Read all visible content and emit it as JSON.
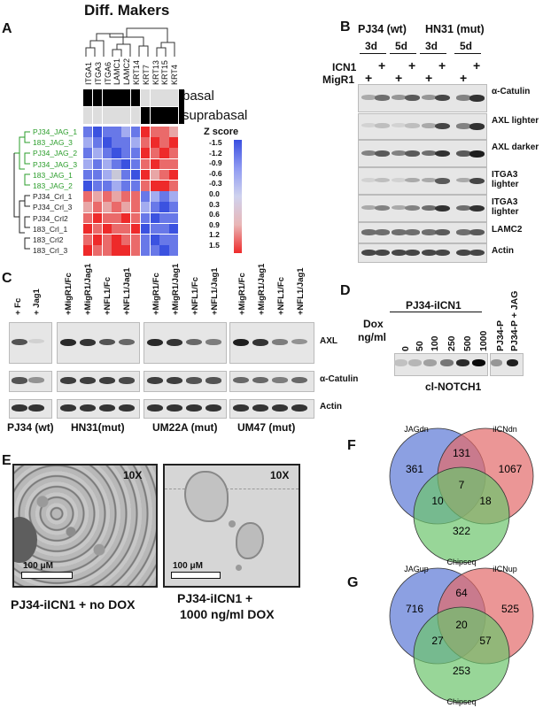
{
  "panelA": {
    "label": "A",
    "title": "Diff. Makers",
    "genes": [
      "ITGA1",
      "ITGA3",
      "ITGA6",
      "LAMC1",
      "LAMC2",
      "KRT14",
      "KRT7",
      "KRT13",
      "KRT15",
      "KRT4"
    ],
    "basal_label": "basal",
    "suprabasal_label": "suprabasal",
    "zscore_title": "Z score",
    "zscore_ticks": [
      "-1.5",
      "-1.2",
      "-0.9",
      "-0.6",
      "-0.3",
      "0.0",
      "0.3",
      "0.6",
      "0.9",
      "1.2",
      "1.5"
    ],
    "rows": [
      "PJ34_JAG_1",
      "183_JAG_3",
      "PJ34_JAG_2",
      "PJ34_JAG_3",
      "183_JAG_1",
      "183_JAG_2",
      "PJ34_Crl_1",
      "PJ34_Crl_3",
      "PJ34_Crl2",
      "183_Crl_1",
      "183_Crl2",
      "183_Crl_3"
    ],
    "row_colors": {
      "jag": "#2a9d2a",
      "crl": "#222222"
    }
  },
  "panelB": {
    "label": "B",
    "group1": "PJ34 (wt)",
    "group2": "HN31 (mut)",
    "times": [
      "3d",
      "5d",
      "3d",
      "5d"
    ],
    "icn1_label": "ICN1",
    "migr1_label": "MigR1",
    "plus": "+",
    "blots": [
      "α-Catulin",
      "AXL lighter",
      "AXL darker",
      "ITGA3 lighter",
      "ITGA3 lighter",
      "LAMC2",
      "Actin"
    ]
  },
  "panelC": {
    "label": "C",
    "lanes_pj34": [
      "+ Fc",
      "+ Jag1"
    ],
    "lanes_other": [
      "+MigR1/Fc",
      "+MigR1/Jag1",
      "+NFL1/Fc",
      "+NFL1/Jag1"
    ],
    "blots": [
      "AXL",
      "α-Catulin",
      "Actin"
    ],
    "cells": [
      "PJ34 (wt)",
      "HN31(mut)",
      "UM22A (mut)",
      "UM47 (mut)"
    ]
  },
  "panelD": {
    "label": "D",
    "header": "PJ34-iICN1",
    "dox_label": "Dox",
    "unit_label": "ng/ml",
    "doses": [
      "0",
      "50",
      "100",
      "250",
      "500",
      "1000"
    ],
    "extra_lanes": [
      "PJ34-P",
      "PJ34-P + JAG"
    ],
    "blot_label": "cl-NOTCH1"
  },
  "panelE": {
    "label": "E",
    "mag_left": "10X",
    "mag_right": "10X",
    "scale_left": "100 μM",
    "scale_right": "100 μM",
    "caption_left": "PJ34-iICN1 + no DOX",
    "caption_right_1": "PJ34-iICN1 +",
    "caption_right_2": "1000 ng/ml DOX"
  },
  "panelF": {
    "label": "F",
    "set_a": "JAGdn",
    "set_b": "iICNdn",
    "set_c": "Chipseq",
    "a_only": "361",
    "ab": "131",
    "b_only": "1067",
    "abc": "7",
    "ac": "10",
    "bc": "18",
    "c_only": "322",
    "colors": {
      "a": "#5b78d6",
      "b": "#e26a6a",
      "c": "#6cc56c"
    }
  },
  "panelG": {
    "label": "G",
    "set_a": "JAGup",
    "set_b": "iICNup",
    "set_c": "Chipseq",
    "a_only": "716",
    "ab": "64",
    "b_only": "525",
    "abc": "20",
    "ac": "27",
    "bc": "57",
    "c_only": "253",
    "colors": {
      "a": "#5b78d6",
      "b": "#e26a6a",
      "c": "#6cc56c"
    }
  }
}
